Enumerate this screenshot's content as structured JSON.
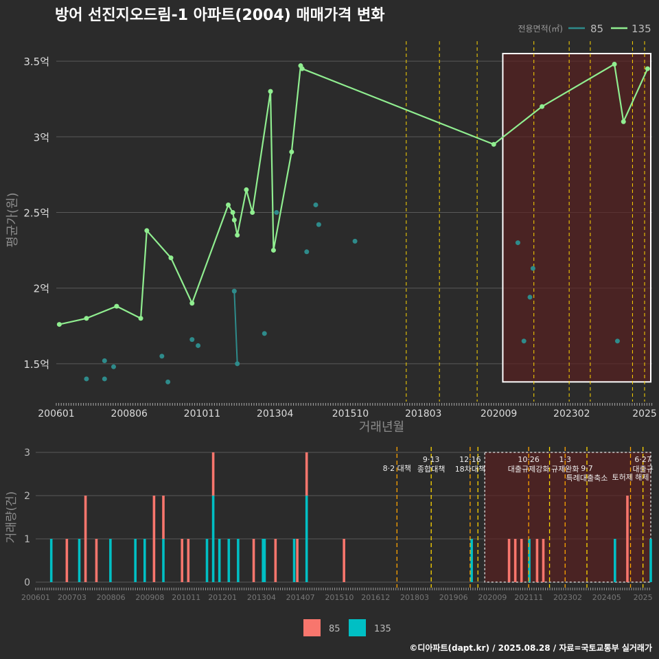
{
  "title": "방어 선진지오드림-1 아파트(2004) 매매가격 변화",
  "footer": "©디아파트(dapt.kr) / 2025.08.28 / 자료=국토교통부 실거래가",
  "colors": {
    "bg": "#2b2b2b",
    "s85": "#2e8b8b",
    "s135": "#90ee90",
    "bar85": "#f8766d",
    "bar135": "#00bfc4",
    "policy": "#ffd700",
    "policy2": "#ffa500",
    "highlight": "#5a1e1e"
  },
  "chart_data": [
    {
      "type": "line",
      "title": "방어 선진지오드림-1 아파트(2004) 매매가격 변화",
      "ylabel": "평균가(원)",
      "xlabel": "거래년월",
      "ylim": [
        1.25,
        3.65
      ],
      "yticks": [
        1.5,
        2,
        2.5,
        3,
        3.5
      ],
      "ytick_labels": [
        "1.5억",
        "2억",
        "2.5억",
        "3억",
        "3.5억"
      ],
      "xlim": [
        2006.0,
        2025.75
      ],
      "xticks": [
        2006.0,
        2008.417,
        2010.833,
        2013.25,
        2015.75,
        2018.167,
        2020.667,
        2023.083,
        2025.5
      ],
      "xtick_labels": [
        "200601",
        "200806",
        "201011",
        "201304",
        "201510",
        "201803",
        "202009",
        "202302",
        "2025"
      ],
      "legend_title": "전용면적(㎡)",
      "series": [
        {
          "name": "85",
          "mode": "scatter",
          "points": [
            [
              2007.0,
              1.4
            ],
            [
              2007.6,
              1.52
            ],
            [
              2007.6,
              1.4
            ],
            [
              2007.9,
              1.48
            ],
            [
              2009.5,
              1.55
            ],
            [
              2009.7,
              1.38
            ],
            [
              2010.5,
              1.66
            ],
            [
              2010.7,
              1.62
            ],
            [
              2011.9,
              1.98
            ],
            [
              2012.0,
              1.5
            ],
            [
              2012.9,
              1.7
            ],
            [
              2013.3,
              2.5
            ],
            [
              2014.3,
              2.24
            ],
            [
              2014.6,
              2.55
            ],
            [
              2014.7,
              2.42
            ],
            [
              2015.9,
              2.31
            ],
            [
              2021.3,
              2.3
            ],
            [
              2021.5,
              1.65
            ],
            [
              2021.7,
              1.94
            ],
            [
              2021.8,
              2.13
            ],
            [
              2024.6,
              1.65
            ]
          ],
          "connect": [
            [
              2011.9,
              1.98
            ],
            [
              2012.0,
              1.5
            ]
          ]
        },
        {
          "name": "135",
          "mode": "line",
          "points": [
            [
              2006.1,
              1.76
            ],
            [
              2007.0,
              1.8
            ],
            [
              2008.0,
              1.88
            ],
            [
              2008.8,
              1.8
            ],
            [
              2009.0,
              2.38
            ],
            [
              2009.8,
              2.2
            ],
            [
              2010.5,
              1.9
            ],
            [
              2011.7,
              2.55
            ],
            [
              2011.85,
              2.5
            ],
            [
              2011.9,
              2.45
            ],
            [
              2012.0,
              2.35
            ],
            [
              2012.3,
              2.65
            ],
            [
              2012.5,
              2.5
            ],
            [
              2013.1,
              3.3
            ],
            [
              2013.2,
              2.25
            ],
            [
              2013.8,
              2.9
            ],
            [
              2014.1,
              3.47
            ],
            [
              2014.15,
              3.45
            ],
            [
              2020.5,
              2.95
            ],
            [
              2022.1,
              3.2
            ],
            [
              2024.5,
              3.48
            ],
            [
              2024.8,
              3.1
            ],
            [
              2025.6,
              3.45
            ]
          ]
        }
      ],
      "policy_lines": [
        2017.6,
        2018.7,
        2019.95,
        2021.83,
        2023.0,
        2023.7,
        2025.1,
        2025.5
      ],
      "highlight_range": [
        2020.8,
        2025.75
      ]
    },
    {
      "type": "bar",
      "ylabel": "거래량(건)",
      "ylim": [
        0,
        3
      ],
      "yticks": [
        0,
        1,
        2,
        3
      ],
      "ytick_labels": [
        "0",
        "1",
        "2",
        "3"
      ],
      "xlim": [
        2006.0,
        2025.75
      ],
      "xticks": [
        2006.0,
        2007.167,
        2008.417,
        2009.667,
        2010.833,
        2012.0,
        2013.25,
        2014.5,
        2015.75,
        2016.917,
        2018.167,
        2019.417,
        2020.667,
        2021.833,
        2023.083,
        2024.333,
        2025.5
      ],
      "xtick_labels": [
        "200601",
        "200703",
        "200806",
        "200908",
        "201011",
        "201201",
        "201304",
        "201407",
        "201510",
        "201612",
        "201803",
        "201906",
        "202009",
        "202111",
        "202302",
        "202405",
        "2025"
      ],
      "legend": [
        {
          "name": "85",
          "color": "#f8766d"
        },
        {
          "name": "135",
          "color": "#00bfc4"
        }
      ],
      "bars": [
        {
          "x": 2006.5,
          "s85": 0,
          "s135": 1
        },
        {
          "x": 2007.0,
          "s85": 1,
          "s135": 0
        },
        {
          "x": 2007.4,
          "s85": 0,
          "s135": 1
        },
        {
          "x": 2007.6,
          "s85": 2,
          "s135": 0
        },
        {
          "x": 2007.95,
          "s85": 1,
          "s135": 0
        },
        {
          "x": 2008.4,
          "s85": 0,
          "s135": 1
        },
        {
          "x": 2009.2,
          "s85": 0,
          "s135": 1
        },
        {
          "x": 2009.5,
          "s85": 0,
          "s135": 1
        },
        {
          "x": 2009.8,
          "s85": 2,
          "s135": 0
        },
        {
          "x": 2010.1,
          "s85": 1,
          "s135": 1
        },
        {
          "x": 2010.7,
          "s85": 1,
          "s135": 0
        },
        {
          "x": 2010.9,
          "s85": 1,
          "s135": 0
        },
        {
          "x": 2011.5,
          "s85": 0,
          "s135": 1
        },
        {
          "x": 2011.7,
          "s85": 1,
          "s135": 2
        },
        {
          "x": 2011.9,
          "s85": 0,
          "s135": 1
        },
        {
          "x": 2012.2,
          "s85": 0,
          "s135": 1
        },
        {
          "x": 2012.5,
          "s85": 0,
          "s135": 1
        },
        {
          "x": 2013.0,
          "s85": 1,
          "s135": 0
        },
        {
          "x": 2013.3,
          "s85": 0,
          "s135": 1
        },
        {
          "x": 2013.35,
          "s85": 0,
          "s135": 1
        },
        {
          "x": 2013.7,
          "s85": 1,
          "s135": 0
        },
        {
          "x": 2014.3,
          "s85": 0,
          "s135": 1
        },
        {
          "x": 2014.4,
          "s85": 1,
          "s135": 0
        },
        {
          "x": 2014.7,
          "s85": 1,
          "s135": 2
        },
        {
          "x": 2015.9,
          "s85": 1,
          "s135": 0
        },
        {
          "x": 2020.0,
          "s85": 0,
          "s135": 1
        },
        {
          "x": 2021.2,
          "s85": 1,
          "s135": 0
        },
        {
          "x": 2021.4,
          "s85": 1,
          "s135": 0
        },
        {
          "x": 2021.6,
          "s85": 1,
          "s135": 0
        },
        {
          "x": 2021.85,
          "s85": 0,
          "s135": 1
        },
        {
          "x": 2022.1,
          "s85": 1,
          "s135": 0
        },
        {
          "x": 2022.3,
          "s85": 1,
          "s135": 0
        },
        {
          "x": 2024.6,
          "s85": 0,
          "s135": 1
        },
        {
          "x": 2025.0,
          "s85": 2,
          "s135": 0
        },
        {
          "x": 2025.75,
          "s85": 0,
          "s135": 1
        }
      ],
      "policy_lines": [
        2017.6,
        2018.7,
        2019.95,
        2020.2,
        2021.83,
        2022.5,
        2023.0,
        2023.7,
        2025.1,
        2025.5
      ],
      "highlight_range": [
        2020.2,
        2025.75
      ],
      "annotations": [
        {
          "x": 2017.6,
          "lines": [
            "8·2 대책"
          ],
          "row": 1
        },
        {
          "x": 2018.7,
          "lines": [
            "9·13",
            "종합대책"
          ],
          "row": 0
        },
        {
          "x": 2019.95,
          "lines": [
            "12·16",
            "18차대책"
          ],
          "row": 0
        },
        {
          "x": 2021.83,
          "lines": [
            "10·26",
            "대출규제강화"
          ],
          "row": 0
        },
        {
          "x": 2023.0,
          "lines": [
            "1·3",
            "규제완화"
          ],
          "row": 0
        },
        {
          "x": 2023.7,
          "lines": [
            "9·7",
            "특례대출축소"
          ],
          "row": 1
        },
        {
          "x": 2025.1,
          "lines": [
            "토허제 해제"
          ],
          "row": 2
        },
        {
          "x": 2025.5,
          "lines": [
            "6·27",
            "대출규"
          ],
          "row": 0
        }
      ]
    }
  ]
}
